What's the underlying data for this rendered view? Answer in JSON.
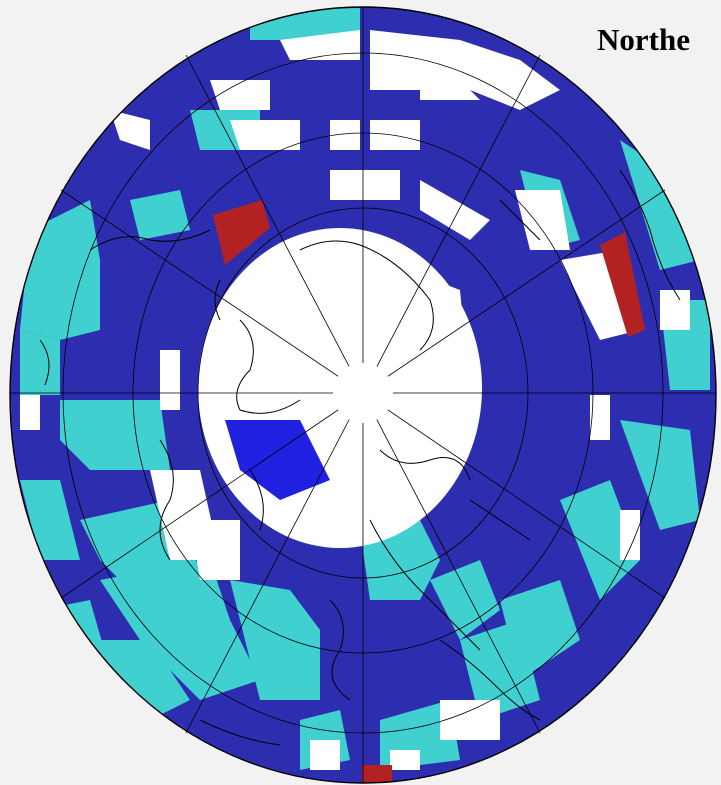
{
  "title": "Northe",
  "colors": {
    "background": "#f2f2f2",
    "dark_blue": "#2d2db0",
    "cyan": "#40d0d0",
    "red": "#b22222",
    "white": "#ffffff",
    "lines": "#000000"
  },
  "map": {
    "projection": "north-polar-stereographic",
    "sectors": 12,
    "rings": 5
  }
}
